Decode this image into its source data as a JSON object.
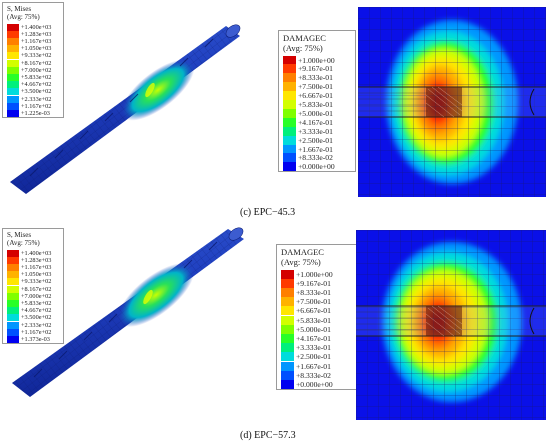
{
  "panels": [
    {
      "id": "c",
      "caption": "(c) EPC−45.3",
      "mises": {
        "title": "S, Mises",
        "subtitle": "(Avg: 75%)",
        "labels": [
          "+1.400e+03",
          "+1.283e+03",
          "+1.167e+03",
          "+1.050e+03",
          "+9.333e+02",
          "+8.167e+02",
          "+7.000e+02",
          "+5.833e+02",
          "+4.667e+02",
          "+3.500e+02",
          "+2.333e+02",
          "+1.167e+02",
          "+1.225e-03"
        ]
      },
      "damage": {
        "title": "DAMAGEC",
        "subtitle": "(Avg: 75%)",
        "labels": [
          "+1.000e+00",
          "+9.167e-01",
          "+8.333e-01",
          "+7.500e-01",
          "+6.667e-01",
          "+5.833e-01",
          "+5.000e-01",
          "+4.167e-01",
          "+3.333e-01",
          "+2.500e-01",
          "+1.667e-01",
          "+8.333e-02",
          "+0.000e+00"
        ]
      }
    },
    {
      "id": "d",
      "caption": "(d) EPC−57.3",
      "mises": {
        "title": "S, Mises",
        "subtitle": "(Avg: 75%)",
        "labels": [
          "+1.400e+03",
          "+1.283e+03",
          "+1.167e+03",
          "+1.050e+03",
          "+9.333e+02",
          "+8.167e+02",
          "+7.000e+02",
          "+5.833e+02",
          "+4.667e+02",
          "+3.500e+02",
          "+2.333e+02",
          "+1.167e+02",
          "+1.373e-03"
        ]
      },
      "damage": {
        "title": "DAMAGEC",
        "subtitle": "(Avg: 75%)",
        "labels": [
          "+1.000e+00",
          "+9.167e-01",
          "+8.333e-01",
          "+7.500e-01",
          "+6.667e-01",
          "+5.833e-01",
          "+5.000e-01",
          "+4.167e-01",
          "+3.333e-01",
          "+2.500e-01",
          "+1.667e-01",
          "+8.333e-02",
          "+0.000e+00"
        ]
      }
    }
  ],
  "contour_colors": [
    "#d40000",
    "#ff3a00",
    "#ff7f00",
    "#ffb200",
    "#ffe600",
    "#d2ff00",
    "#7fff00",
    "#28ff28",
    "#00f07c",
    "#00dcdc",
    "#0096ff",
    "#0050ff",
    "#0000f0"
  ]
}
